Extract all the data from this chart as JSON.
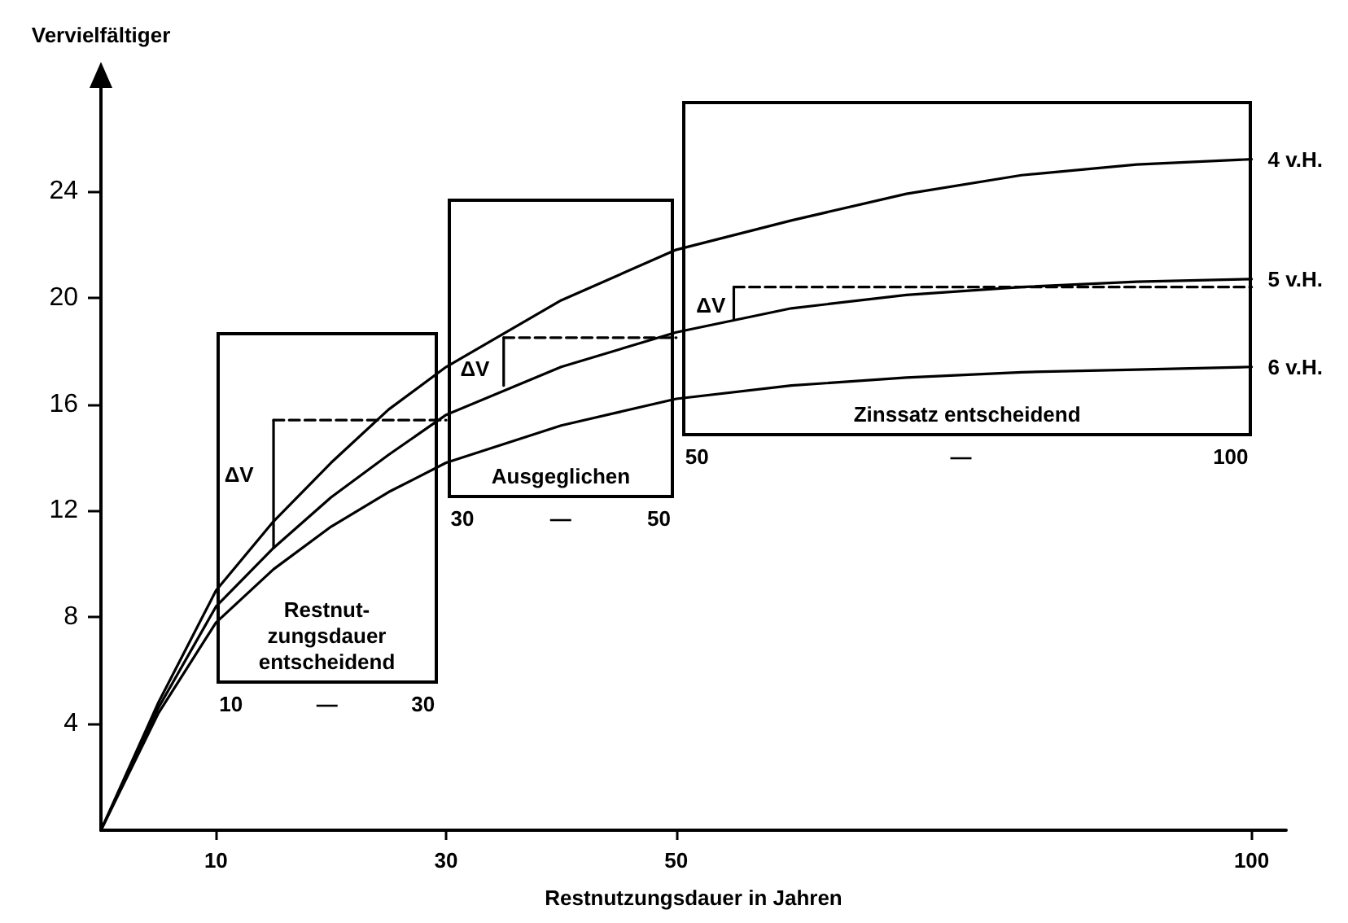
{
  "chart_data": {
    "type": "line",
    "xlabel": "Restnutzungsdauer in Jahren",
    "ylabel": "Vervielfältiger",
    "xlim": [
      0,
      103
    ],
    "ylim": [
      0,
      28
    ],
    "xticks": [
      10,
      30,
      50,
      100
    ],
    "yticks": [
      4,
      8,
      12,
      16,
      20,
      24
    ],
    "grid": false,
    "legend": false,
    "marker": "none",
    "line_style": "solid",
    "series": [
      {
        "name": "4 v.H.",
        "color": "#000000",
        "x": [
          0,
          5,
          10,
          15,
          20,
          25,
          30,
          40,
          50,
          60,
          70,
          80,
          90,
          100
        ],
        "values": [
          0,
          4.8,
          9.0,
          11.6,
          13.8,
          15.8,
          17.4,
          19.9,
          21.8,
          22.9,
          23.9,
          24.6,
          25.0,
          25.2
        ]
      },
      {
        "name": "5 v.H.",
        "color": "#000000",
        "x": [
          0,
          5,
          10,
          15,
          20,
          25,
          30,
          40,
          50,
          60,
          70,
          80,
          90,
          100
        ],
        "values": [
          0,
          4.6,
          8.4,
          10.6,
          12.5,
          14.1,
          15.6,
          17.4,
          18.7,
          19.6,
          20.1,
          20.4,
          20.6,
          20.7
        ]
      },
      {
        "name": "6 v.H.",
        "color": "#000000",
        "x": [
          0,
          5,
          10,
          15,
          20,
          25,
          30,
          40,
          50,
          60,
          70,
          80,
          90,
          100
        ],
        "values": [
          0,
          4.4,
          7.8,
          9.8,
          11.4,
          12.7,
          13.8,
          15.2,
          16.2,
          16.7,
          17.0,
          17.2,
          17.3,
          17.4
        ]
      },
      {
        "color": "#000000",
        "x": [
          15,
          15
        ],
        "values": [
          10.6,
          15.4
        ]
      },
      {
        "color": "#000000",
        "line_style": "dashed",
        "x": [
          15,
          30
        ],
        "values": [
          15.4,
          15.4
        ]
      },
      {
        "color": "#000000",
        "x": [
          35,
          35
        ],
        "values": [
          16.7,
          18.5
        ]
      },
      {
        "color": "#000000",
        "line_style": "dashed",
        "x": [
          35,
          50
        ],
        "values": [
          18.5,
          18.5
        ]
      },
      {
        "color": "#000000",
        "x": [
          55,
          55
        ],
        "values": [
          19.2,
          20.4
        ]
      },
      {
        "color": "#000000",
        "line_style": "dashed",
        "x": [
          55,
          100
        ],
        "values": [
          20.4,
          20.4
        ]
      }
    ],
    "annotations": [
      "Restnut-\nzungsdauer\nentscheidend",
      "10 — 30",
      "Ausgeglichen",
      "30 — 50",
      "Zinssatz entscheidend",
      "50 — 100",
      "ΔV",
      "ΔV",
      "ΔV"
    ]
  }
}
